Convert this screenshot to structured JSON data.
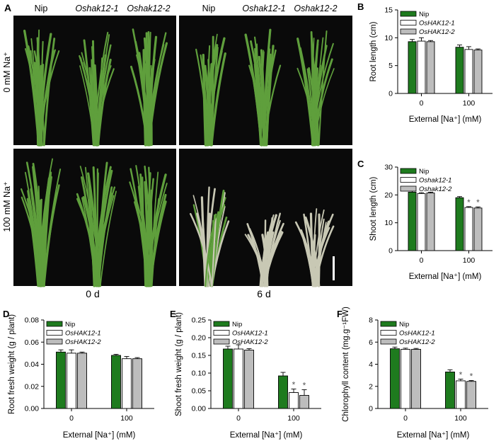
{
  "photo": {
    "panel_label": "A",
    "columns": [
      "Nip",
      "Oshak12-1",
      "Oshak12-2",
      "Nip",
      "Oshak12-1",
      "Oshak12-2"
    ],
    "rows": [
      "0 mM Na⁺",
      "100 mM Na⁺"
    ],
    "days": [
      "0 d",
      "6 d"
    ]
  },
  "colors": {
    "nip": "#1e7b1e",
    "mut1": "#ffffff",
    "mut2": "#bdbdbd",
    "photo_bg": "#0a0a0a",
    "leaf": "#5f9f3c",
    "wilt": "#c8c8b4"
  },
  "chart_data": [
    {
      "id": "B",
      "type": "bar",
      "panel_label": "B",
      "categories": [
        "0",
        "100"
      ],
      "series": [
        {
          "name": "Nip",
          "values": [
            9.3,
            8.3
          ],
          "errors": [
            0.4,
            0.4
          ]
        },
        {
          "name": "OsHAK12-1",
          "values": [
            9.4,
            7.9
          ],
          "errors": [
            0.6,
            0.5
          ]
        },
        {
          "name": "OsHAK12-2",
          "values": [
            9.3,
            7.8
          ],
          "errors": [
            0.2,
            0.2
          ]
        }
      ],
      "xlabel": "External [Na⁺] (mM)",
      "ylabel": "Root length (cm)",
      "ylim": [
        0,
        15
      ],
      "yticks": [
        "0",
        "5",
        "10",
        "15"
      ],
      "stars": [],
      "legend": "top-left"
    },
    {
      "id": "C",
      "type": "bar",
      "panel_label": "C",
      "categories": [
        "0",
        "100"
      ],
      "series": [
        {
          "name": "Nip",
          "values": [
            21,
            19
          ],
          "errors": [
            0.6,
            0.4
          ]
        },
        {
          "name": "Oshak12-1",
          "values": [
            20.5,
            15.5
          ],
          "errors": [
            0.3,
            0.3
          ]
        },
        {
          "name": "Oshak12-2",
          "values": [
            20.7,
            15.3
          ],
          "errors": [
            0.3,
            0.4
          ]
        }
      ],
      "xlabel": "External [Na⁺] (mM)",
      "ylabel": "Shoot length (cm)",
      "ylim": [
        0,
        30
      ],
      "yticks": [
        "0",
        "10",
        "20",
        "30"
      ],
      "stars": [
        "*",
        "*"
      ],
      "legend": "top-left"
    },
    {
      "id": "D",
      "type": "bar",
      "panel_label": "D",
      "categories": [
        "0",
        "100"
      ],
      "series": [
        {
          "name": "Nip",
          "values": [
            0.051,
            0.048
          ],
          "errors": [
            0.002,
            0.001
          ]
        },
        {
          "name": "OsHAK12-1",
          "values": [
            0.05,
            0.045
          ],
          "errors": [
            0.003,
            0.002
          ]
        },
        {
          "name": "OsHAK12-2",
          "values": [
            0.05,
            0.045
          ],
          "errors": [
            0.001,
            0.001
          ]
        }
      ],
      "xlabel": "External [Na⁺] (mM)",
      "ylabel": "Root fresh weight (g / plant)",
      "ylim": [
        0,
        0.08
      ],
      "yticks": [
        "0.00",
        "0.02",
        "0.04",
        "0.06",
        "0.08"
      ],
      "stars": [],
      "legend": "top-left"
    },
    {
      "id": "E",
      "type": "bar",
      "panel_label": "E",
      "categories": [
        "0",
        "100"
      ],
      "series": [
        {
          "name": "Nip",
          "values": [
            0.168,
            0.092
          ],
          "errors": [
            0.008,
            0.01
          ]
        },
        {
          "name": "OsHAK12-1",
          "values": [
            0.168,
            0.045
          ],
          "errors": [
            0.012,
            0.01
          ]
        },
        {
          "name": "OsHAK12-2",
          "values": [
            0.165,
            0.037
          ],
          "errors": [
            0.004,
            0.016
          ]
        }
      ],
      "xlabel": "External [Na⁺] (mM)",
      "ylabel": "Shoot fresh weight (g / plant)",
      "ylim": [
        0,
        0.25
      ],
      "yticks": [
        "0.00",
        "0.05",
        "0.10",
        "0.15",
        "0.20",
        "0.25"
      ],
      "stars": [
        "*",
        "*"
      ],
      "legend": "top-left"
    },
    {
      "id": "F",
      "type": "bar",
      "panel_label": "F",
      "categories": [
        "0",
        "100"
      ],
      "series": [
        {
          "name": "Nip",
          "values": [
            5.4,
            3.3
          ],
          "errors": [
            0.15,
            0.2
          ]
        },
        {
          "name": "OsHAK12-1",
          "values": [
            5.35,
            2.5
          ],
          "errors": [
            0.1,
            0.15
          ]
        },
        {
          "name": "OsHAK12-2",
          "values": [
            5.35,
            2.45
          ],
          "errors": [
            0.08,
            0.08
          ]
        }
      ],
      "xlabel": "External [Na⁺] (mM)",
      "ylabel": "Chlorophyll content (mg.g⁻¹FW)",
      "ylim": [
        0,
        8
      ],
      "yticks": [
        "0",
        "2",
        "4",
        "6",
        "8"
      ],
      "stars": [
        "*",
        "*"
      ],
      "legend": "top-left"
    }
  ]
}
